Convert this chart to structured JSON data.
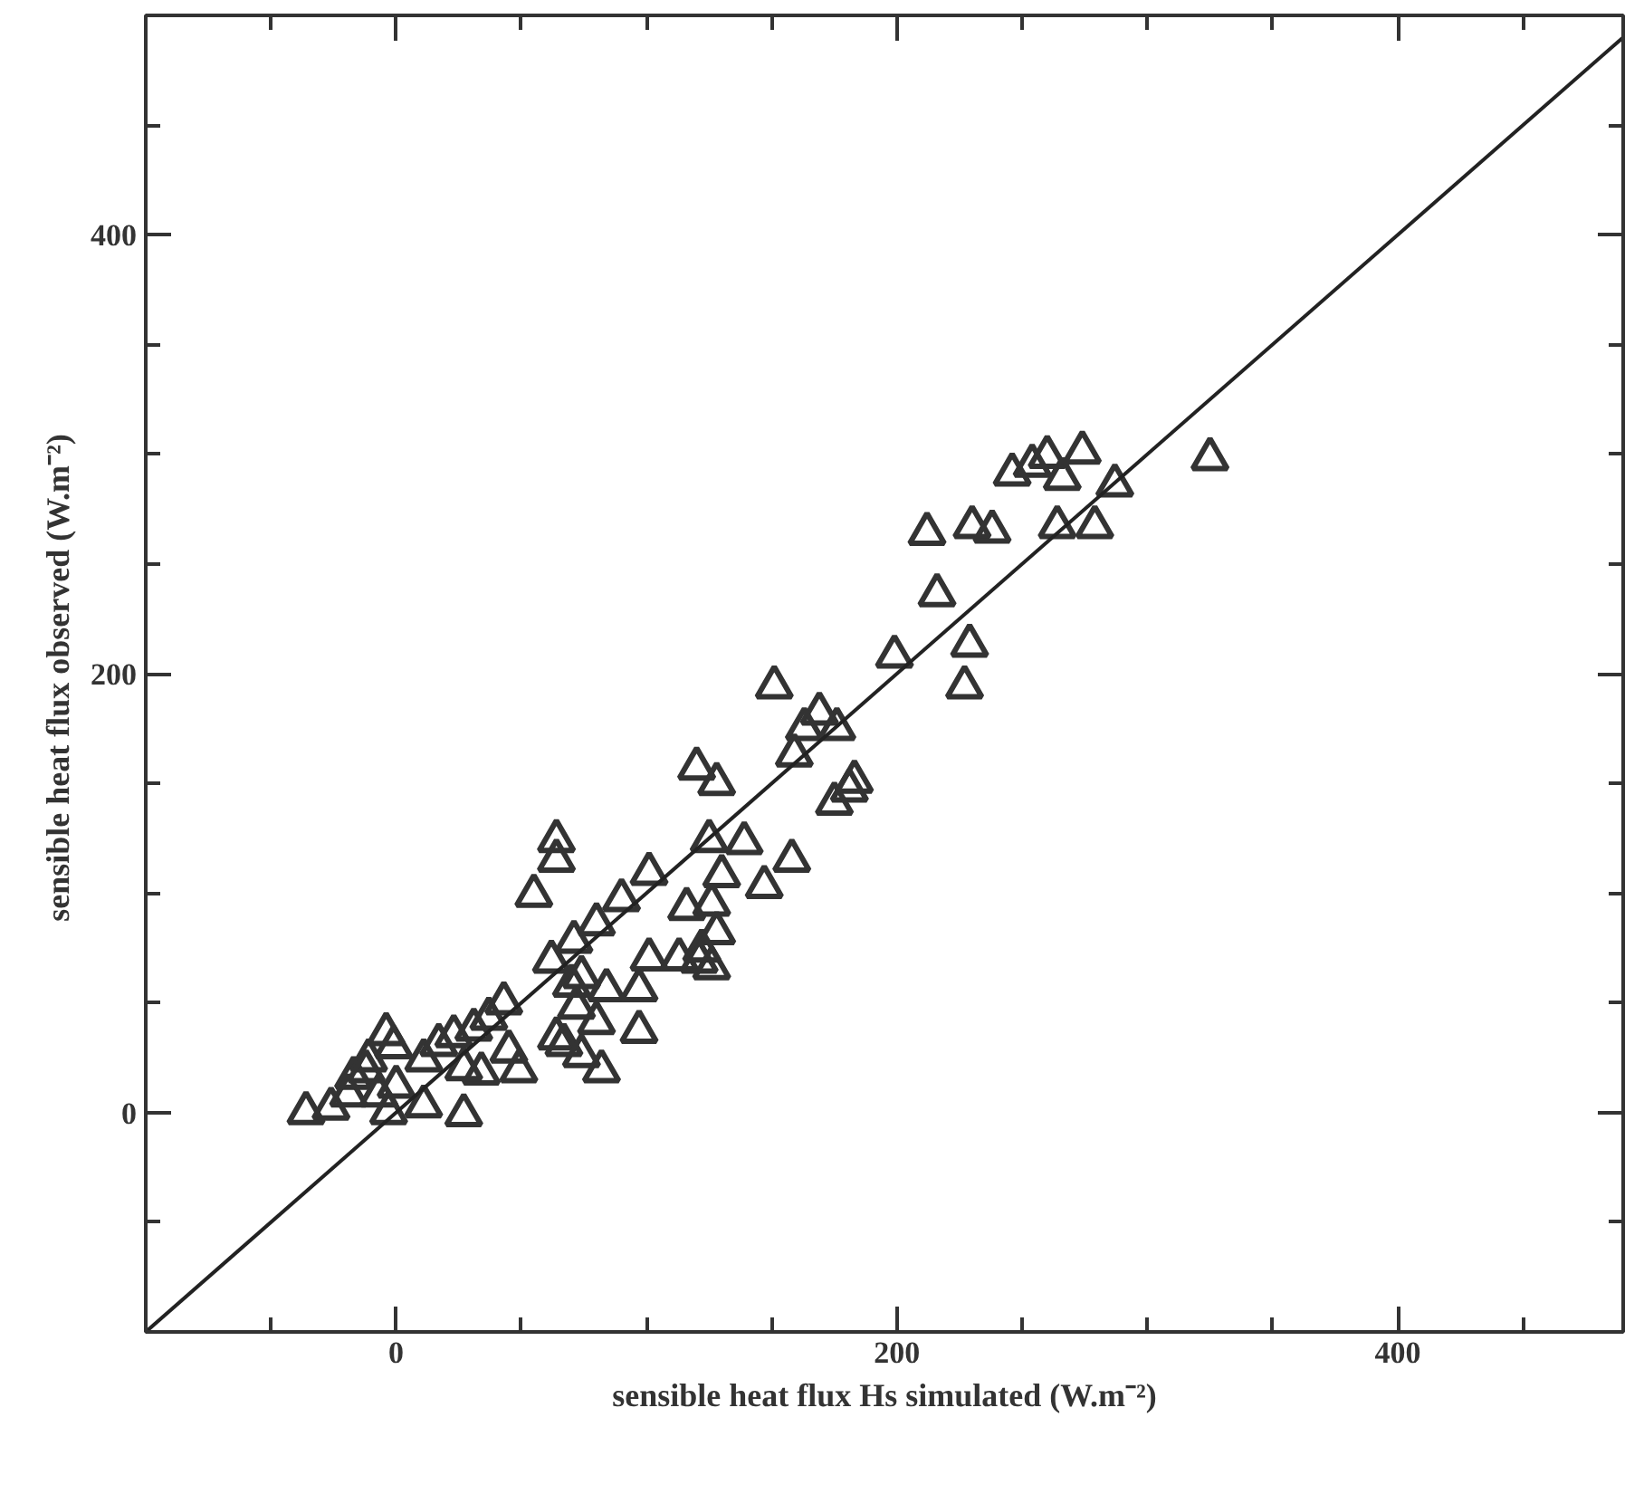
{
  "chart_data": {
    "type": "scatter",
    "xlabel": "sensible heat flux Hs simulated (W.m⁻²)",
    "ylabel": "sensible heat flux observed  (W.m⁻²)",
    "xlim": [
      -100,
      490
    ],
    "ylim": [
      -100,
      500
    ],
    "xticks": [
      {
        "value": -50,
        "label": null
      },
      0,
      {
        "value": 50,
        "label": null
      },
      {
        "value": 100,
        "label": null
      },
      {
        "value": 150,
        "label": null
      },
      200,
      {
        "value": 250,
        "label": null
      },
      {
        "value": 300,
        "label": null
      },
      {
        "value": 350,
        "label": null
      },
      400,
      {
        "value": 450,
        "label": null
      }
    ],
    "yticks": [
      {
        "value": -50,
        "label": null
      },
      0,
      {
        "value": 50,
        "label": null
      },
      {
        "value": 100,
        "label": null
      },
      {
        "value": 150,
        "label": null
      },
      200,
      {
        "value": 250,
        "label": null
      },
      {
        "value": 300,
        "label": null
      },
      {
        "value": 350,
        "label": null
      },
      400,
      {
        "value": 450,
        "label": null
      }
    ],
    "grid": false,
    "marker": "triangle",
    "series": [
      {
        "color": "#333333",
        "x": [
          325,
          274,
          260,
          254,
          246,
          266,
          287,
          212,
          230,
          238,
          264,
          279,
          216,
          199,
          229,
          227,
          176,
          151,
          169,
          163,
          159,
          183,
          181,
          175,
          120,
          128,
          125,
          139,
          158,
          130,
          147,
          126,
          116,
          101,
          90,
          80,
          128,
          64,
          64,
          55,
          71,
          62,
          74,
          70,
          84,
          97,
          101,
          113,
          121,
          126,
          122,
          72,
          80,
          97,
          64,
          67,
          74,
          82,
          43,
          37,
          31,
          23,
          45,
          49,
          34,
          27,
          11,
          17,
          -4,
          -1,
          -11,
          -17,
          -12,
          -7,
          -19,
          0,
          -3,
          -26,
          -36,
          11,
          27
        ],
        "values": [
          298,
          301,
          299,
          295,
          291,
          289,
          286,
          264,
          267,
          265,
          267,
          267,
          236,
          208,
          213,
          194,
          175,
          194,
          182,
          175,
          163,
          151,
          147,
          141,
          157,
          150,
          124,
          123,
          115,
          108,
          103,
          95,
          93,
          109,
          97,
          86,
          82,
          124,
          115,
          99,
          78,
          69,
          62,
          58,
          56,
          56,
          70,
          70,
          69,
          66,
          74,
          48,
          41,
          37,
          34,
          31,
          26,
          19,
          50,
          43,
          38,
          35,
          28,
          19,
          18,
          20,
          24,
          31,
          36,
          30,
          24,
          16,
          19,
          8,
          8,
          12,
          0,
          2,
          0,
          3,
          -1
        ]
      },
      {
        "type": "line",
        "color": "#222222",
        "marker": "none",
        "x": [
          -100,
          490
        ],
        "values": [
          -100,
          490
        ]
      }
    ]
  }
}
